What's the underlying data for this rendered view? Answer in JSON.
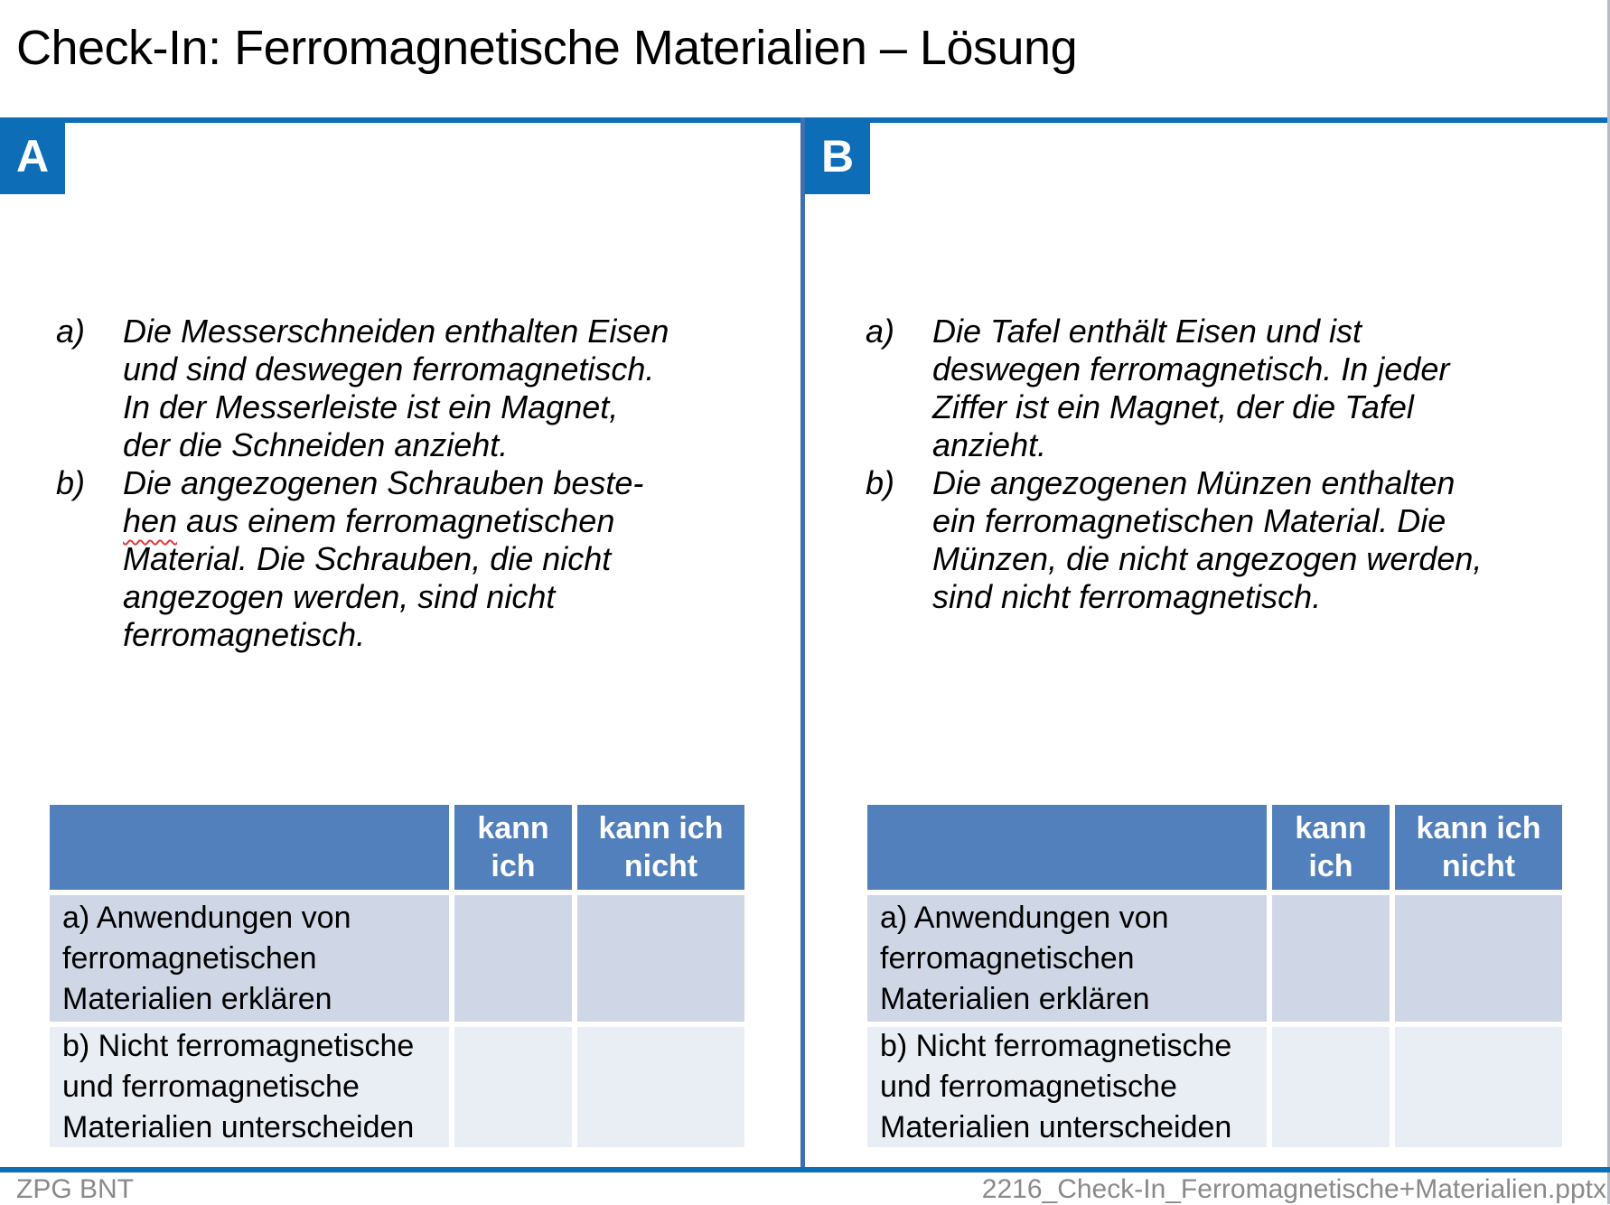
{
  "header": {
    "title": "Check-In: Ferromagnetische Materialien – Lösung"
  },
  "panels": [
    {
      "label": "A",
      "answers": {
        "a_marker": "a)",
        "a_text": "Die Messerschneiden enthalten Eisen\nund sind deswegen ferromagnetisch.\nIn der Messerleiste ist ein Magnet,\nder die Schneiden anzieht.",
        "b_marker": "b)",
        "b_line1": "Die angezogenen Schrauben beste-",
        "b_misspelled": "hen",
        "b_rest": " aus einem ferromagnetischen\nMaterial. Die Schrauben, die nicht\nangezogen werden, sind nicht\nferromagnetisch."
      }
    },
    {
      "label": "B",
      "answers": {
        "a_marker": "a)",
        "a_text": "Die Tafel enthält Eisen und ist\ndeswegen ferromagnetisch. In jeder\nZiffer ist ein Magnet, der die Tafel\nanzieht.",
        "b_marker": "b)",
        "b_text": "Die angezogenen Münzen enthalten\nein ferromagnetischen Material. Die\nMünzen, die nicht angezogen werden,\nsind nicht ferromagnetisch."
      }
    }
  ],
  "selfcheck_table": {
    "col_can": "kann\nich",
    "col_cannot": "kann ich\nnicht",
    "row_a": "a) Anwendungen von\nferromagnetischen\nMaterialien erklären",
    "row_b": "b) Nicht ferromagnetische\nund ferromagnetische\nMaterialien unterscheiden"
  },
  "footer": {
    "left": "ZPG BNT",
    "right": "2216_Check-In_Ferromagnetische+Materialien.pptx"
  },
  "colors": {
    "accent": "#0d6eb7",
    "divider": "#3f6fae",
    "table_header": "#5180bd",
    "row_odd": "#cfd6e6",
    "row_even": "#e9edf4",
    "spellcheck": "#e03a3a",
    "footer_text": "#8a8a8a"
  }
}
